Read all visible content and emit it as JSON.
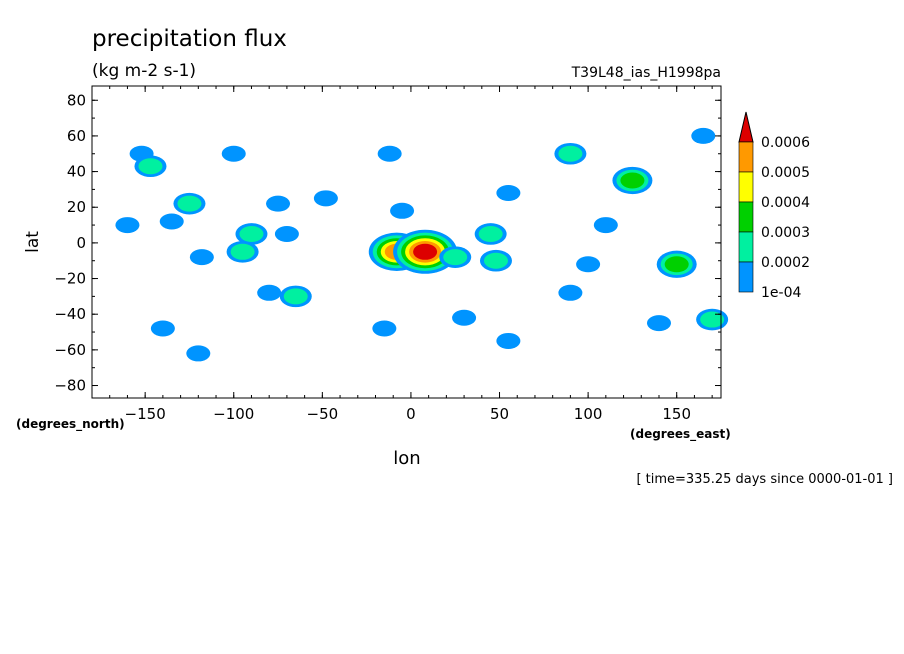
{
  "chart_data": {
    "type": "heatmap",
    "title": "precipitation flux",
    "subtitle": "(kg m-2 s-1)",
    "dataset": "T39L48_ias_H1998pa",
    "xlabel": "lon",
    "ylabel": "lat",
    "x_unit": "(degrees_east)",
    "y_unit": "(degrees_north)",
    "time_label": "[ time=335.25 days since 0000-01-01 ]",
    "xlim": [
      -180,
      175
    ],
    "ylim": [
      -87,
      88
    ],
    "x_ticks": [
      -150,
      -100,
      -50,
      0,
      50,
      100,
      150
    ],
    "y_ticks": [
      80,
      60,
      40,
      20,
      0,
      -20,
      -40,
      -60,
      -80
    ],
    "legend": {
      "placement": "right",
      "colors": [
        "#0094ff",
        "#00f0a0",
        "#00d000",
        "#ffff00",
        "#ff9900",
        "#dd0000"
      ],
      "labels": [
        "1e-04",
        "0.0002",
        "0.0003",
        "0.0004",
        "0.0005",
        "0.0006"
      ]
    },
    "features": [
      {
        "lon": -152,
        "lat": 50,
        "level": 1
      },
      {
        "lon": -147,
        "lat": 43,
        "level": 2
      },
      {
        "lon": -125,
        "lat": 22,
        "level": 2
      },
      {
        "lon": -100,
        "lat": 50,
        "level": 1
      },
      {
        "lon": -75,
        "lat": 22,
        "level": 1
      },
      {
        "lon": -160,
        "lat": 10,
        "level": 1
      },
      {
        "lon": -135,
        "lat": 12,
        "level": 1
      },
      {
        "lon": -90,
        "lat": 5,
        "level": 2
      },
      {
        "lon": -70,
        "lat": 5,
        "level": 1
      },
      {
        "lon": -118,
        "lat": -8,
        "level": 1
      },
      {
        "lon": -95,
        "lat": -5,
        "level": 2
      },
      {
        "lon": -65,
        "lat": -30,
        "level": 2
      },
      {
        "lon": -80,
        "lat": -28,
        "level": 1
      },
      {
        "lon": -140,
        "lat": -48,
        "level": 1
      },
      {
        "lon": -120,
        "lat": -62,
        "level": 1
      },
      {
        "lon": -12,
        "lat": 50,
        "level": 1
      },
      {
        "lon": -48,
        "lat": 25,
        "level": 1
      },
      {
        "lon": -5,
        "lat": 18,
        "level": 1
      },
      {
        "lon": -8,
        "lat": -5,
        "level": 5
      },
      {
        "lon": 8,
        "lat": -5,
        "level": 6
      },
      {
        "lon": 25,
        "lat": -8,
        "level": 2
      },
      {
        "lon": 45,
        "lat": 5,
        "level": 2
      },
      {
        "lon": 48,
        "lat": -10,
        "level": 2
      },
      {
        "lon": 55,
        "lat": 28,
        "level": 1
      },
      {
        "lon": 90,
        "lat": 50,
        "level": 2
      },
      {
        "lon": 125,
        "lat": 35,
        "level": 3
      },
      {
        "lon": 165,
        "lat": 60,
        "level": 1
      },
      {
        "lon": 110,
        "lat": 10,
        "level": 1
      },
      {
        "lon": 150,
        "lat": -12,
        "level": 3
      },
      {
        "lon": 100,
        "lat": -12,
        "level": 1
      },
      {
        "lon": 90,
        "lat": -28,
        "level": 1
      },
      {
        "lon": 30,
        "lat": -42,
        "level": 1
      },
      {
        "lon": 55,
        "lat": -55,
        "level": 1
      },
      {
        "lon": 140,
        "lat": -45,
        "level": 1
      },
      {
        "lon": 170,
        "lat": -43,
        "level": 2
      },
      {
        "lon": -15,
        "lat": -48,
        "level": 1
      }
    ]
  }
}
